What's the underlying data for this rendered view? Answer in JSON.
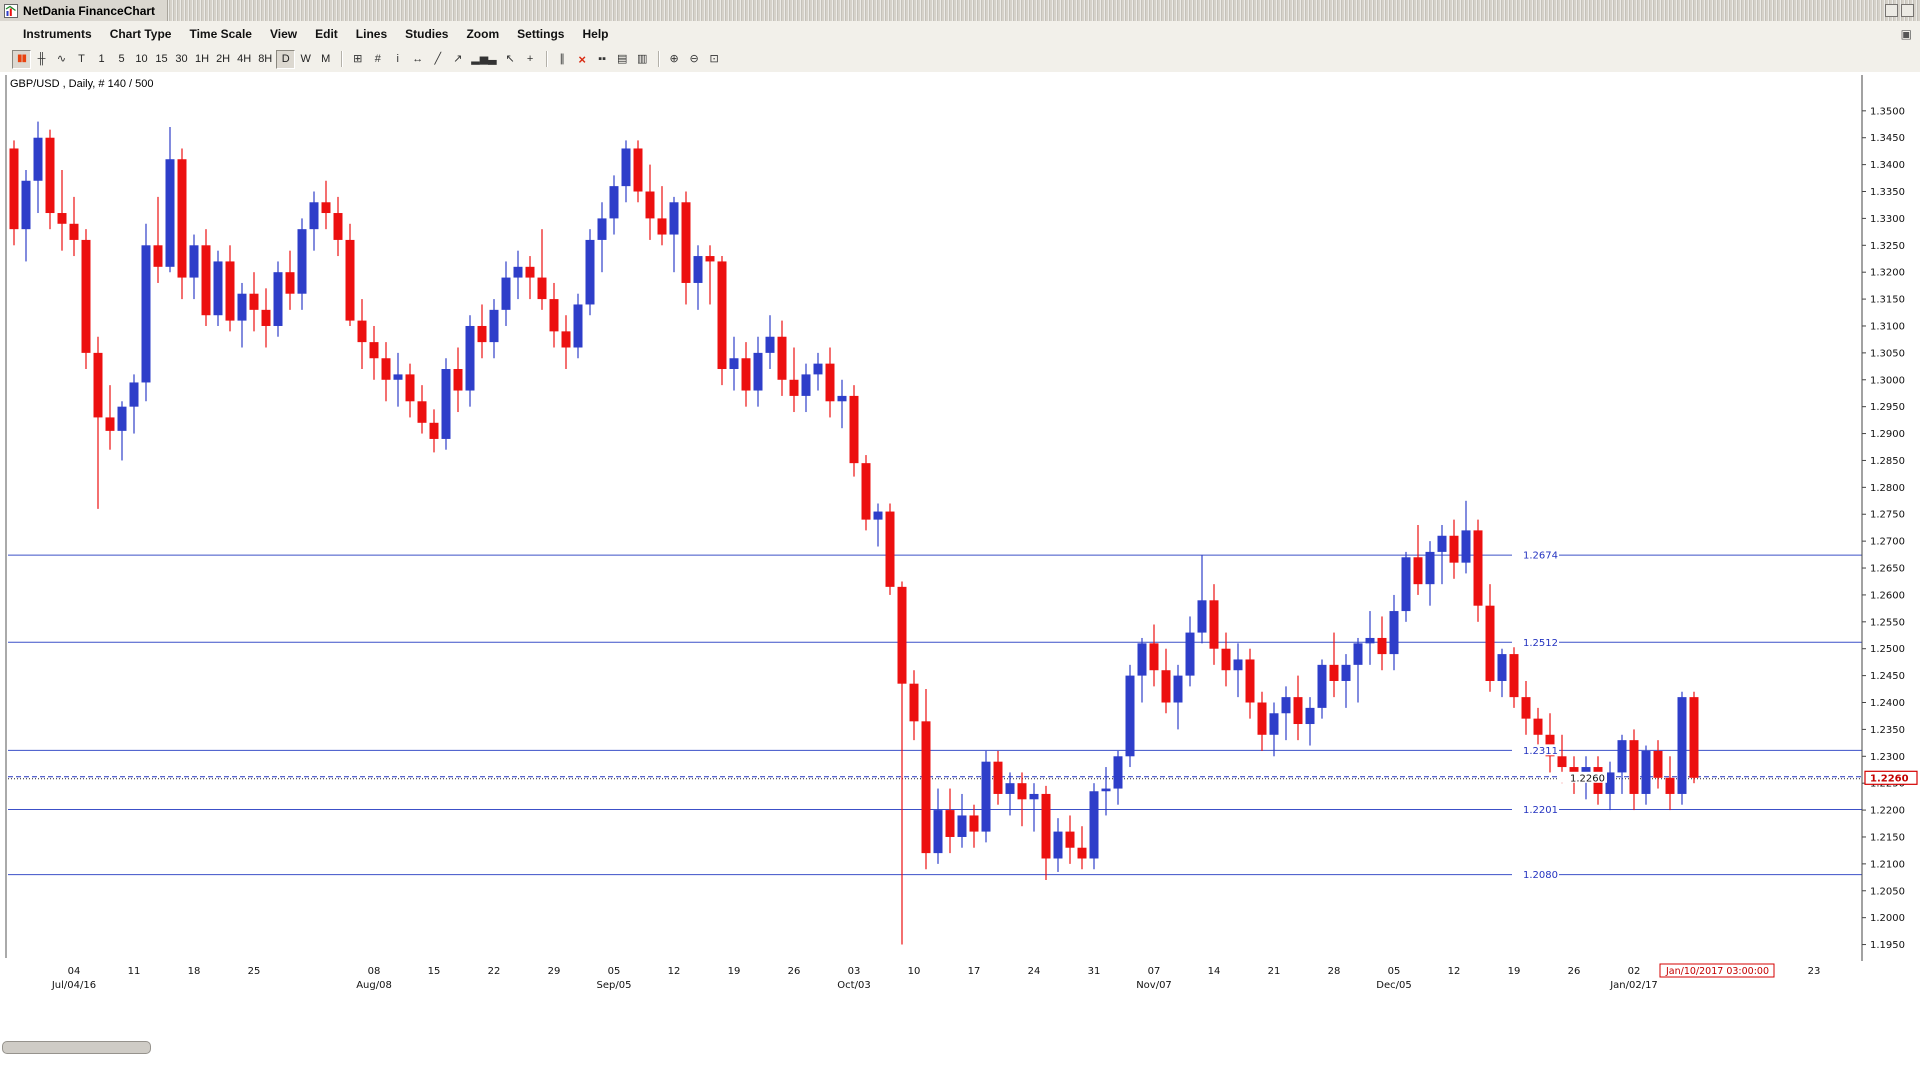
{
  "window": {
    "title": "NetDania FinanceChart"
  },
  "menu": {
    "items": [
      "Instruments",
      "Chart Type",
      "Time Scale",
      "View",
      "Edit",
      "Lines",
      "Studies",
      "Zoom",
      "Settings",
      "Help"
    ],
    "right_icon_glyph": "▣"
  },
  "toolbar": {
    "chart_types": [
      {
        "name": "candlestick",
        "glyph": "▮▮",
        "selected": true
      },
      {
        "name": "ohlc-bars",
        "glyph": "╫",
        "selected": false
      },
      {
        "name": "line-chart",
        "glyph": "∿",
        "selected": false
      },
      {
        "name": "tick",
        "glyph": "T",
        "selected": false
      }
    ],
    "timeframes": [
      "1",
      "5",
      "10",
      "15",
      "30",
      "1H",
      "2H",
      "4H",
      "8H",
      "D",
      "W",
      "M"
    ],
    "selected_timeframe": "D",
    "tools": [
      {
        "name": "pane-layout",
        "glyph": "⊞"
      },
      {
        "name": "grid",
        "glyph": "#"
      },
      {
        "name": "info",
        "glyph": "i"
      },
      {
        "name": "scroll",
        "glyph": "↔"
      },
      {
        "name": "trendline",
        "glyph": "╱"
      },
      {
        "name": "ray-line",
        "glyph": "↗"
      },
      {
        "name": "volume-study",
        "glyph": "▂▅▃"
      },
      {
        "name": "cursor",
        "glyph": "↖"
      },
      {
        "name": "crosshair",
        "glyph": "+"
      },
      {
        "name": "parallel-lines",
        "glyph": "∥"
      },
      {
        "name": "delete-lines",
        "glyph": "×"
      },
      {
        "name": "mini-candles",
        "glyph": "▪▪"
      },
      {
        "name": "print",
        "glyph": "▤"
      },
      {
        "name": "print-preview",
        "glyph": "▥"
      },
      {
        "name": "zoom-in",
        "glyph": "⊕"
      },
      {
        "name": "zoom-out",
        "glyph": "⊖"
      },
      {
        "name": "zoom-reset",
        "glyph": "⊡"
      }
    ]
  },
  "chart": {
    "symbol_label": "GBP/USD , Daily, # 140 / 500"
  },
  "chart_data": {
    "type": "candlestick",
    "symbol": "GBP/USD",
    "interval": "Daily",
    "title": "GBP/USD Daily",
    "current_price": 1.226,
    "current_time_label": "Jan/10/2017 03:00:00",
    "y_axis": {
      "max": 1.35,
      "min": 1.195,
      "step": 0.005
    },
    "horizontal_lines": [
      1.2674,
      1.2512,
      1.2311,
      1.2201,
      1.208
    ],
    "colors": {
      "up": "#2e3ec9",
      "down": "#ec1010",
      "line": "#3c50c8"
    },
    "week_ticks": [
      {
        "label": "04",
        "i": 5
      },
      {
        "label": "11",
        "i": 10
      },
      {
        "label": "18",
        "i": 15
      },
      {
        "label": "25",
        "i": 20
      },
      {
        "label": "08",
        "i": 30
      },
      {
        "label": "15",
        "i": 35
      },
      {
        "label": "22",
        "i": 40
      },
      {
        "label": "29",
        "i": 45
      },
      {
        "label": "05",
        "i": 50
      },
      {
        "label": "12",
        "i": 55
      },
      {
        "label": "19",
        "i": 60
      },
      {
        "label": "26",
        "i": 65
      },
      {
        "label": "03",
        "i": 70
      },
      {
        "label": "10",
        "i": 75
      },
      {
        "label": "17",
        "i": 80
      },
      {
        "label": "24",
        "i": 85
      },
      {
        "label": "31",
        "i": 90
      },
      {
        "label": "07",
        "i": 95
      },
      {
        "label": "14",
        "i": 100
      },
      {
        "label": "21",
        "i": 105
      },
      {
        "label": "28",
        "i": 110
      },
      {
        "label": "05",
        "i": 115
      },
      {
        "label": "12",
        "i": 120
      },
      {
        "label": "19",
        "i": 125
      },
      {
        "label": "26",
        "i": 130
      },
      {
        "label": "02",
        "i": 135
      },
      {
        "label": "23",
        "i": 150
      }
    ],
    "month_ticks": [
      {
        "label": "Jul/04/16",
        "i": 5
      },
      {
        "label": "Aug/08",
        "i": 30
      },
      {
        "label": "Sep/05",
        "i": 50
      },
      {
        "label": "Oct/03",
        "i": 70
      },
      {
        "label": "Nov/07",
        "i": 95
      },
      {
        "label": "Dec/05",
        "i": 115
      },
      {
        "label": "Jan/02/17",
        "i": 135
      }
    ],
    "candles": [
      [
        1.343,
        1.3445,
        1.325,
        1.328
      ],
      [
        1.328,
        1.339,
        1.322,
        1.337
      ],
      [
        1.337,
        1.348,
        1.331,
        1.345
      ],
      [
        1.345,
        1.3465,
        1.328,
        1.331
      ],
      [
        1.331,
        1.339,
        1.324,
        1.329
      ],
      [
        1.329,
        1.334,
        1.323,
        1.326
      ],
      [
        1.326,
        1.328,
        1.302,
        1.305
      ],
      [
        1.305,
        1.308,
        1.276,
        1.293
      ],
      [
        1.293,
        1.299,
        1.287,
        1.2905
      ],
      [
        1.2905,
        1.296,
        1.285,
        1.295
      ],
      [
        1.295,
        1.301,
        1.29,
        1.2995
      ],
      [
        1.2995,
        1.329,
        1.296,
        1.325
      ],
      [
        1.325,
        1.334,
        1.318,
        1.321
      ],
      [
        1.321,
        1.347,
        1.32,
        1.341
      ],
      [
        1.341,
        1.343,
        1.315,
        1.319
      ],
      [
        1.319,
        1.327,
        1.315,
        1.325
      ],
      [
        1.325,
        1.328,
        1.31,
        1.312
      ],
      [
        1.312,
        1.324,
        1.31,
        1.322
      ],
      [
        1.322,
        1.325,
        1.309,
        1.311
      ],
      [
        1.311,
        1.318,
        1.306,
        1.316
      ],
      [
        1.316,
        1.32,
        1.309,
        1.313
      ],
      [
        1.313,
        1.317,
        1.306,
        1.31
      ],
      [
        1.31,
        1.322,
        1.308,
        1.32
      ],
      [
        1.32,
        1.324,
        1.313,
        1.316
      ],
      [
        1.316,
        1.33,
        1.313,
        1.328
      ],
      [
        1.328,
        1.335,
        1.324,
        1.333
      ],
      [
        1.333,
        1.337,
        1.328,
        1.331
      ],
      [
        1.331,
        1.334,
        1.323,
        1.326
      ],
      [
        1.326,
        1.329,
        1.31,
        1.311
      ],
      [
        1.311,
        1.315,
        1.302,
        1.307
      ],
      [
        1.307,
        1.31,
        1.3,
        1.304
      ],
      [
        1.304,
        1.307,
        1.296,
        1.3
      ],
      [
        1.3,
        1.305,
        1.295,
        1.301
      ],
      [
        1.301,
        1.303,
        1.293,
        1.296
      ],
      [
        1.296,
        1.299,
        1.29,
        1.292
      ],
      [
        1.292,
        1.2945,
        1.2865,
        1.289
      ],
      [
        1.289,
        1.304,
        1.287,
        1.302
      ],
      [
        1.302,
        1.306,
        1.294,
        1.298
      ],
      [
        1.298,
        1.312,
        1.295,
        1.31
      ],
      [
        1.31,
        1.314,
        1.304,
        1.307
      ],
      [
        1.307,
        1.315,
        1.304,
        1.313
      ],
      [
        1.313,
        1.322,
        1.31,
        1.319
      ],
      [
        1.319,
        1.324,
        1.315,
        1.321
      ],
      [
        1.321,
        1.323,
        1.315,
        1.319
      ],
      [
        1.319,
        1.328,
        1.313,
        1.315
      ],
      [
        1.315,
        1.318,
        1.306,
        1.309
      ],
      [
        1.309,
        1.312,
        1.302,
        1.306
      ],
      [
        1.306,
        1.316,
        1.304,
        1.314
      ],
      [
        1.314,
        1.328,
        1.312,
        1.326
      ],
      [
        1.326,
        1.333,
        1.32,
        1.33
      ],
      [
        1.33,
        1.338,
        1.327,
        1.336
      ],
      [
        1.336,
        1.3445,
        1.333,
        1.343
      ],
      [
        1.343,
        1.3445,
        1.333,
        1.335
      ],
      [
        1.335,
        1.34,
        1.326,
        1.33
      ],
      [
        1.33,
        1.336,
        1.325,
        1.327
      ],
      [
        1.327,
        1.334,
        1.32,
        1.333
      ],
      [
        1.333,
        1.335,
        1.314,
        1.318
      ],
      [
        1.318,
        1.325,
        1.313,
        1.323
      ],
      [
        1.323,
        1.325,
        1.314,
        1.322
      ],
      [
        1.322,
        1.323,
        1.299,
        1.302
      ],
      [
        1.302,
        1.308,
        1.298,
        1.304
      ],
      [
        1.304,
        1.307,
        1.295,
        1.298
      ],
      [
        1.298,
        1.308,
        1.295,
        1.305
      ],
      [
        1.305,
        1.312,
        1.302,
        1.308
      ],
      [
        1.308,
        1.311,
        1.297,
        1.3
      ],
      [
        1.3,
        1.306,
        1.294,
        1.297
      ],
      [
        1.297,
        1.303,
        1.294,
        1.301
      ],
      [
        1.301,
        1.305,
        1.298,
        1.303
      ],
      [
        1.303,
        1.306,
        1.293,
        1.296
      ],
      [
        1.296,
        1.3,
        1.291,
        1.297
      ],
      [
        1.297,
        1.299,
        1.282,
        1.2845
      ],
      [
        1.2845,
        1.286,
        1.272,
        1.274
      ],
      [
        1.274,
        1.277,
        1.269,
        1.2755
      ],
      [
        1.2755,
        1.277,
        1.26,
        1.2615
      ],
      [
        1.2615,
        1.2625,
        1.195,
        1.2435
      ],
      [
        1.2435,
        1.246,
        1.233,
        1.2365
      ],
      [
        1.2365,
        1.2425,
        1.209,
        1.212
      ],
      [
        1.212,
        1.224,
        1.21,
        1.22
      ],
      [
        1.22,
        1.224,
        1.212,
        1.215
      ],
      [
        1.215,
        1.223,
        1.213,
        1.219
      ],
      [
        1.219,
        1.221,
        1.213,
        1.216
      ],
      [
        1.216,
        1.231,
        1.214,
        1.229
      ],
      [
        1.229,
        1.231,
        1.221,
        1.223
      ],
      [
        1.223,
        1.227,
        1.219,
        1.225
      ],
      [
        1.225,
        1.227,
        1.217,
        1.222
      ],
      [
        1.222,
        1.225,
        1.216,
        1.223
      ],
      [
        1.223,
        1.2245,
        1.207,
        1.211
      ],
      [
        1.211,
        1.2185,
        1.2085,
        1.216
      ],
      [
        1.216,
        1.219,
        1.21,
        1.213
      ],
      [
        1.213,
        1.217,
        1.209,
        1.211
      ],
      [
        1.211,
        1.225,
        1.209,
        1.2235
      ],
      [
        1.2235,
        1.228,
        1.219,
        1.224
      ],
      [
        1.224,
        1.231,
        1.221,
        1.23
      ],
      [
        1.23,
        1.247,
        1.228,
        1.245
      ],
      [
        1.245,
        1.252,
        1.24,
        1.251
      ],
      [
        1.251,
        1.2545,
        1.243,
        1.246
      ],
      [
        1.246,
        1.25,
        1.238,
        1.24
      ],
      [
        1.24,
        1.247,
        1.235,
        1.245
      ],
      [
        1.245,
        1.256,
        1.243,
        1.253
      ],
      [
        1.253,
        1.2674,
        1.251,
        1.259
      ],
      [
        1.259,
        1.262,
        1.247,
        1.25
      ],
      [
        1.25,
        1.253,
        1.243,
        1.246
      ],
      [
        1.246,
        1.251,
        1.241,
        1.248
      ],
      [
        1.248,
        1.25,
        1.237,
        1.24
      ],
      [
        1.24,
        1.242,
        1.231,
        1.234
      ],
      [
        1.234,
        1.24,
        1.23,
        1.238
      ],
      [
        1.238,
        1.243,
        1.233,
        1.241
      ],
      [
        1.241,
        1.245,
        1.233,
        1.236
      ],
      [
        1.236,
        1.241,
        1.232,
        1.239
      ],
      [
        1.239,
        1.248,
        1.237,
        1.247
      ],
      [
        1.247,
        1.253,
        1.241,
        1.244
      ],
      [
        1.244,
        1.249,
        1.239,
        1.247
      ],
      [
        1.247,
        1.252,
        1.24,
        1.251
      ],
      [
        1.251,
        1.257,
        1.247,
        1.252
      ],
      [
        1.252,
        1.256,
        1.246,
        1.249
      ],
      [
        1.249,
        1.26,
        1.246,
        1.257
      ],
      [
        1.257,
        1.268,
        1.255,
        1.267
      ],
      [
        1.267,
        1.273,
        1.26,
        1.262
      ],
      [
        1.262,
        1.27,
        1.258,
        1.268
      ],
      [
        1.268,
        1.273,
        1.262,
        1.271
      ],
      [
        1.271,
        1.274,
        1.263,
        1.266
      ],
      [
        1.266,
        1.2775,
        1.264,
        1.272
      ],
      [
        1.272,
        1.274,
        1.255,
        1.258
      ],
      [
        1.258,
        1.262,
        1.242,
        1.244
      ],
      [
        1.244,
        1.25,
        1.241,
        1.249
      ],
      [
        1.249,
        1.251,
        1.239,
        1.241
      ],
      [
        1.241,
        1.244,
        1.234,
        1.237
      ],
      [
        1.237,
        1.239,
        1.231,
        1.234
      ],
      [
        1.234,
        1.238,
        1.227,
        1.23
      ],
      [
        1.23,
        1.234,
        1.225,
        1.228
      ],
      [
        1.228,
        1.23,
        1.223,
        1.226
      ],
      [
        1.226,
        1.23,
        1.222,
        1.228
      ],
      [
        1.228,
        1.23,
        1.221,
        1.223
      ],
      [
        1.223,
        1.229,
        1.22,
        1.227
      ],
      [
        1.227,
        1.234,
        1.223,
        1.233
      ],
      [
        1.233,
        1.235,
        1.22,
        1.223
      ],
      [
        1.223,
        1.232,
        1.221,
        1.231
      ],
      [
        1.231,
        1.233,
        1.224,
        1.226
      ],
      [
        1.226,
        1.23,
        1.22,
        1.223
      ],
      [
        1.223,
        1.242,
        1.221,
        1.241
      ],
      [
        1.241,
        1.242,
        1.225,
        1.226
      ]
    ]
  }
}
